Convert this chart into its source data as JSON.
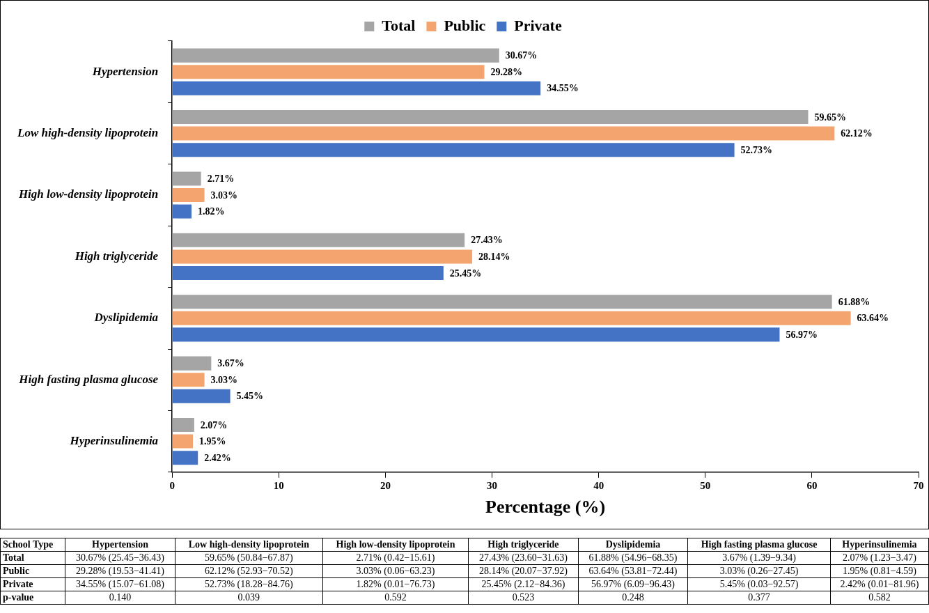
{
  "chart_data": {
    "type": "bar",
    "orientation": "horizontal",
    "xlabel": "Percentage (%)",
    "categories": [
      "Hypertension",
      "Low high-density lipoprotein",
      "High low-density lipoprotein",
      "High triglyceride",
      "Dyslipidemia",
      "High fasting plasma glucose",
      "Hyperinsulinemia"
    ],
    "series": [
      {
        "name": "Total",
        "color": "#a5a5a5",
        "values": [
          30.67,
          59.65,
          2.71,
          27.43,
          61.88,
          3.67,
          2.07
        ],
        "value_labels": [
          "30.67%",
          "59.65%",
          "2.71%",
          "27.43%",
          "61.88%",
          "3.67%",
          "2.07%"
        ]
      },
      {
        "name": "Public",
        "color": "#f4a46e",
        "values": [
          29.28,
          62.12,
          3.03,
          28.14,
          63.64,
          3.03,
          1.95
        ],
        "value_labels": [
          "29.28%",
          "62.12%",
          "3.03%",
          "28.14%",
          "63.64%",
          "3.03%",
          "1.95%"
        ]
      },
      {
        "name": "Private",
        "color": "#4472c4",
        "values": [
          34.55,
          52.73,
          1.82,
          25.45,
          56.97,
          5.45,
          2.42
        ],
        "value_labels": [
          "34.55%",
          "52.73%",
          "1.82%",
          "25.45%",
          "56.97%",
          "5.45%",
          "2.42%"
        ]
      }
    ],
    "xlim": [
      0,
      70
    ],
    "xticks": [
      0,
      10,
      20,
      30,
      40,
      50,
      60,
      70
    ],
    "grid": false,
    "legend": "top",
    "annotations": [
      "School Type",
      "Hypertension",
      "Low high-density lipoprotein",
      "High low-density lipoprotein",
      "High triglyceride",
      "Dyslipidemia",
      "High fasting plasma glucose",
      "Hyperinsulinemia",
      "Total",
      "30.67% (25.45−36.43)",
      "59.65% (50.84−67.87)",
      "2.71% (0.42−15.61)",
      "27.43% (23.60−31.63)",
      "61.88% (54.96−68.35)",
      "3.67% (1.39−9.34)",
      "2.07% (1.23−3.47)",
      "Public",
      "29.28% (19.53−41.41)",
      "62.12% (52.93−70.52)",
      "3.03% (0.06−63.23)",
      "28.14% (20.07−37.92)",
      "63.64% (53.81−72.44)",
      "3.03% (0.26−27.45)",
      "1.95% (0.81−4.59)",
      "Private",
      "34.55% (15.07−61.08)",
      "52.73% (18.28−84.76)",
      "1.82% (0.01−76.73)",
      "25.45% (2.12−84.36)",
      "56.97% (6.09−96.43)",
      "5.45% (0.03−92.57)",
      "2.42% (0.01−81.96)",
      "p-value",
      "0.140",
      "0.039",
      "0.592",
      "0.523",
      "0.248",
      "0.377",
      "0.582"
    ]
  }
}
